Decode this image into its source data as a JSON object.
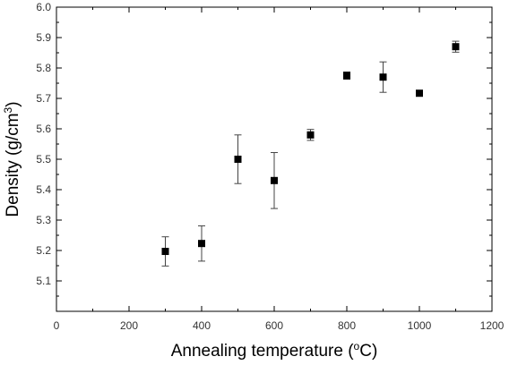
{
  "chart_data": {
    "type": "scatter",
    "xlabel_main": "Annealing temperature (",
    "xlabel_sup": "o",
    "xlabel_end": "C)",
    "ylabel_main": "Density (g/cm",
    "ylabel_sup": "3",
    "ylabel_end": ")",
    "xlim": [
      0,
      1200
    ],
    "ylim": [
      5.0,
      6.0
    ],
    "x_ticks": [
      "0",
      "200",
      "400",
      "600",
      "800",
      "1000",
      "1200"
    ],
    "y_ticks": [
      "5.1",
      "5.2",
      "5.3",
      "5.4",
      "5.5",
      "5.6",
      "5.7",
      "5.8",
      "5.9",
      "6.0"
    ],
    "grid": false,
    "marker": "square",
    "marker_color": "#000000",
    "points": [
      {
        "x": 300,
        "y": 5.197,
        "err": 0.048
      },
      {
        "x": 400,
        "y": 5.223,
        "err": 0.058
      },
      {
        "x": 500,
        "y": 5.5,
        "err": 0.08
      },
      {
        "x": 600,
        "y": 5.43,
        "err": 0.092
      },
      {
        "x": 700,
        "y": 5.58,
        "err": 0.018
      },
      {
        "x": 800,
        "y": 5.775,
        "err": 0.012
      },
      {
        "x": 900,
        "y": 5.77,
        "err": 0.05
      },
      {
        "x": 1000,
        "y": 5.717,
        "err": 0.004
      },
      {
        "x": 1100,
        "y": 5.87,
        "err": 0.018
      }
    ]
  }
}
